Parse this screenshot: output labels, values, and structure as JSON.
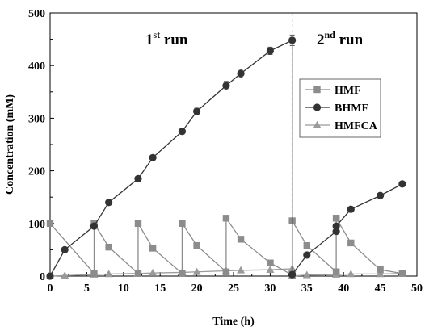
{
  "chart_data": {
    "type": "line",
    "xlabel": "Time (h)",
    "ylabel": "Concentration (mM)",
    "xlim": [
      0,
      50
    ],
    "ylim": [
      0,
      500
    ],
    "xticks": [
      0,
      5,
      10,
      15,
      20,
      25,
      30,
      35,
      40,
      45,
      50
    ],
    "yticks": [
      0,
      100,
      200,
      300,
      400,
      500
    ],
    "annotations": [
      {
        "num": "1",
        "sup": "st",
        "rest": " run"
      },
      {
        "num": "2",
        "sup": "nd",
        "rest": " run"
      }
    ],
    "vertical_dashed_line_x": 33,
    "legend_position": "center-right",
    "series": [
      {
        "name": "HMF",
        "marker": "square",
        "color": "#8c8c8c",
        "x": [
          0,
          6,
          6,
          8,
          12,
          12,
          14,
          18,
          18,
          20,
          24,
          24,
          26,
          30,
          30,
          33,
          33,
          35,
          39,
          39,
          39,
          39,
          41,
          45,
          48
        ],
        "y": [
          100,
          5,
          100,
          55,
          5,
          100,
          53,
          5,
          100,
          58,
          8,
          110,
          70,
          25,
          25,
          2,
          105,
          58,
          8,
          8,
          110,
          110,
          63,
          12,
          5
        ]
      },
      {
        "name": "BHMF",
        "marker": "circle",
        "color": "#333333",
        "x": [
          0,
          2,
          6,
          8,
          12,
          14,
          18,
          20,
          24,
          26,
          30,
          33,
          33,
          35,
          39,
          39,
          41,
          45,
          48
        ],
        "y": [
          0,
          50,
          95,
          140,
          185,
          225,
          275,
          313,
          362,
          385,
          428,
          448,
          3,
          40,
          85,
          95,
          127,
          153,
          175
        ],
        "error": [
          0,
          0,
          0,
          0,
          0,
          0,
          0,
          6,
          8,
          8,
          7,
          10,
          0,
          0,
          0,
          0,
          0,
          0,
          0
        ]
      },
      {
        "name": "HMFCA",
        "marker": "triangle",
        "color": "#9a9a9a",
        "x": [
          0,
          2,
          6,
          8,
          12,
          14,
          18,
          20,
          24,
          26,
          30,
          33,
          33,
          35,
          39,
          41,
          45,
          48
        ],
        "y": [
          0,
          1,
          3,
          4,
          5,
          6,
          7,
          8,
          10,
          11,
          12,
          14,
          0,
          2,
          3,
          4,
          4,
          5
        ]
      }
    ]
  }
}
